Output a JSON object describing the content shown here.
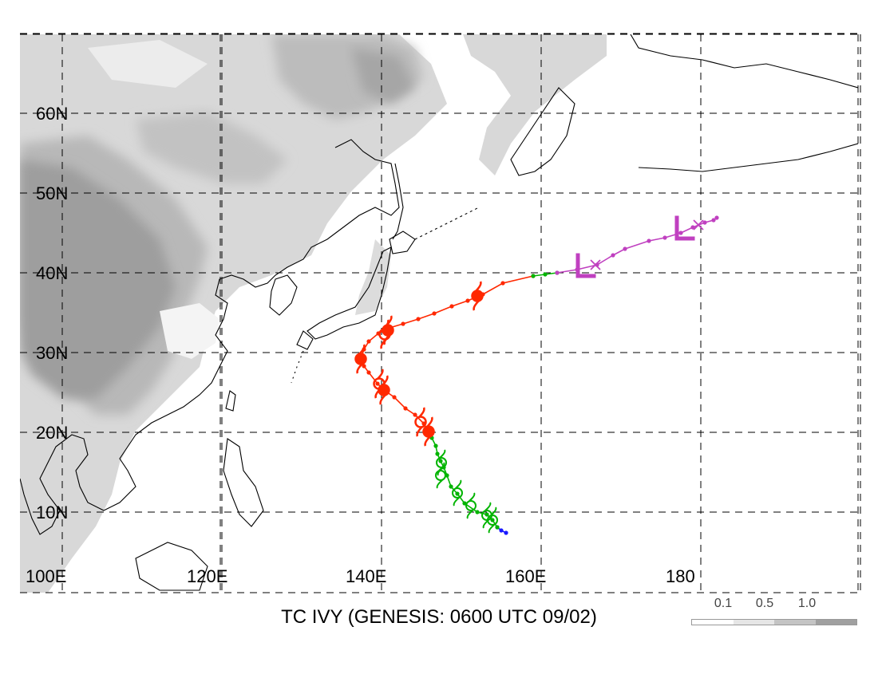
{
  "title": "TC IVY (GENESIS: 0600 UTC 09/02)",
  "lat_labels": [
    "10N",
    "20N",
    "30N",
    "40N",
    "50N",
    "60N"
  ],
  "lon_labels": [
    "100E",
    "120E",
    "140E",
    "160E",
    "180"
  ],
  "legend": {
    "labels": [
      "0.1",
      "0.5",
      "1.0"
    ],
    "colors": [
      "#ffffff",
      "#e6e6e6",
      "#c4c4c4",
      "#a0a0a0"
    ]
  },
  "track_colors": {
    "depression": "#1a1aff",
    "tropical_storm": "#00b400",
    "typhoon": "#ff2800",
    "extratropical": "#c040c0"
  },
  "track_segments": [
    {
      "stage": "depression",
      "points": [
        [
          155.6,
          7.4
        ],
        [
          155.0,
          7.7
        ],
        [
          154.5,
          8.1
        ]
      ]
    },
    {
      "stage": "tropical_storm",
      "points": [
        [
          154.5,
          8.1
        ],
        [
          153.9,
          9.0
        ],
        [
          153.2,
          9.7
        ],
        [
          152.0,
          10.0
        ],
        [
          150.4,
          11.1
        ],
        [
          149.5,
          12.3
        ],
        [
          148.7,
          13.2
        ],
        [
          148.2,
          14.6
        ],
        [
          147.8,
          15.6
        ],
        [
          147.4,
          16.4
        ],
        [
          147.0,
          17.3
        ],
        [
          146.8,
          18.3
        ],
        [
          146.3,
          19.3
        ],
        [
          145.9,
          20.1
        ]
      ]
    },
    {
      "stage": "typhoon",
      "points": [
        [
          145.9,
          20.1
        ],
        [
          145.3,
          21.1
        ],
        [
          144.2,
          22.2
        ],
        [
          143.0,
          23.0
        ],
        [
          141.6,
          24.4
        ],
        [
          140.3,
          25.3
        ],
        [
          139.5,
          26.1
        ],
        [
          138.4,
          27.5
        ],
        [
          137.8,
          28.3
        ],
        [
          137.4,
          29.2
        ],
        [
          137.8,
          30.4
        ],
        [
          138.4,
          31.4
        ],
        [
          139.6,
          32.4
        ],
        [
          141.0,
          33.1
        ],
        [
          142.7,
          33.6
        ],
        [
          144.6,
          34.2
        ],
        [
          146.6,
          34.9
        ],
        [
          148.8,
          35.8
        ],
        [
          150.8,
          36.5
        ],
        [
          152.7,
          37.3
        ],
        [
          155.2,
          38.7
        ],
        [
          159.0,
          39.6
        ]
      ]
    },
    {
      "stage": "tropical_storm",
      "points": [
        [
          159.0,
          39.6
        ],
        [
          160.5,
          39.8
        ],
        [
          162.0,
          40.0
        ]
      ]
    },
    {
      "stage": "extratropical",
      "points": [
        [
          162.0,
          40.0
        ],
        [
          164.5,
          40.4
        ],
        [
          167.0,
          41.0
        ],
        [
          169.0,
          42.2
        ],
        [
          170.5,
          43.0
        ],
        [
          173.5,
          44.0
        ],
        [
          175.5,
          44.4
        ],
        [
          177.5,
          45.0
        ],
        [
          179.0,
          45.7
        ],
        [
          180.5,
          46.3
        ],
        [
          181.6,
          46.6
        ],
        [
          182.0,
          46.9
        ]
      ]
    }
  ],
  "symbols": [
    {
      "type": "typhoon-filled",
      "lon": 145.9,
      "lat": 20.1
    },
    {
      "type": "typhoon-open",
      "lon": 144.9,
      "lat": 21.3
    },
    {
      "type": "typhoon-filled",
      "lon": 140.3,
      "lat": 25.3
    },
    {
      "type": "typhoon-open",
      "lon": 139.7,
      "lat": 26.1
    },
    {
      "type": "typhoon-filled",
      "lon": 137.4,
      "lat": 29.2
    },
    {
      "type": "typhoon-filled",
      "lon": 140.8,
      "lat": 32.8
    },
    {
      "type": "typhoon-open",
      "lon": 140.4,
      "lat": 32.3
    },
    {
      "type": "typhoon-filled",
      "lon": 152.0,
      "lat": 37.1
    },
    {
      "type": "ts-open",
      "lon": 147.5,
      "lat": 16.2
    },
    {
      "type": "ts-open",
      "lon": 147.4,
      "lat": 14.6
    },
    {
      "type": "ts-open",
      "lon": 149.5,
      "lat": 12.4
    },
    {
      "type": "ts-open",
      "lon": 151.2,
      "lat": 10.8
    },
    {
      "type": "ts-open",
      "lon": 153.2,
      "lat": 9.6
    },
    {
      "type": "ts-open",
      "lon": 153.9,
      "lat": 9.0
    },
    {
      "type": "low",
      "lon": 165.2,
      "lat": 40.8
    },
    {
      "type": "low",
      "lon": 177.6,
      "lat": 45.5
    }
  ],
  "x_markers": [
    {
      "lon": 166.8,
      "lat": 41.0
    },
    {
      "lon": 179.7,
      "lat": 46.0
    }
  ]
}
